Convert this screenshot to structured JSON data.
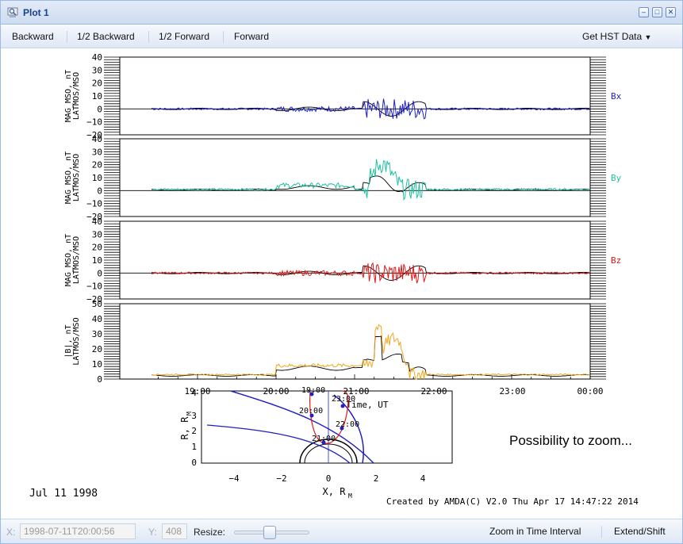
{
  "window": {
    "title": "Plot 1"
  },
  "toolbar": {
    "backward": "Backward",
    "half_backward": "1/2 Backward",
    "half_forward": "1/2 Forward",
    "forward": "Forward",
    "get_hst": "Get HST Data"
  },
  "plot": {
    "panels": [
      {
        "ylabel_line1": "MAG_MSO, nT",
        "ylabel_line2": "LATMOS/MSO",
        "component": "Bx",
        "color": "#2020c0",
        "yticks": [
          "40",
          "30",
          "20",
          "10",
          "0",
          "−10",
          "−20"
        ]
      },
      {
        "ylabel_line1": "MAG_MSO, nT",
        "ylabel_line2": "LATMOS/MSO",
        "component": "By",
        "color": "#20c0a0",
        "yticks": [
          "40",
          "30",
          "20",
          "10",
          "0",
          "−10",
          "−20"
        ]
      },
      {
        "ylabel_line1": "MAG_MSO, nT",
        "ylabel_line2": "LATMOS/MSO",
        "component": "Bz",
        "color": "#e01818",
        "yticks": [
          "40",
          "30",
          "20",
          "10",
          "0",
          "−10",
          "−20"
        ]
      },
      {
        "ylabel_line1": "|B|, nT",
        "ylabel_line2": "LATMOS/MSO",
        "component": "",
        "color": "#f0a820",
        "yticks": [
          "50",
          "40",
          "30",
          "20",
          "10",
          "0"
        ]
      }
    ],
    "time_ticks": [
      "19:00",
      "20:00",
      "21:00",
      "22:00",
      "23:00",
      "00:00"
    ],
    "time_axis_label": "Time, UT",
    "date": "Jul 11 1998",
    "credit": "Created by AMDA(C) V2.0 Thu Apr 17 14:47:22 2014",
    "annotation": "Possibility to zoom...",
    "orbit": {
      "ylabel": "R, R",
      "ylabel_sub": "M",
      "xlabel": "X, R",
      "xlabel_sub": "M",
      "xticks": [
        "−4",
        "−2",
        "0",
        "2",
        "4"
      ],
      "yticks": [
        "0",
        "1",
        "2",
        "3",
        "4"
      ],
      "times": [
        "19:00",
        "20:00",
        "21:00",
        "22:00",
        "23:00"
      ]
    }
  },
  "statusbar": {
    "x_label": "X:",
    "x_value": "1998-07-11T20:00:56",
    "y_label": "Y:",
    "y_value": "408",
    "resize_label": "Resize:",
    "zoom_button": "Zoom in Time Interval",
    "extend_button": "Extend/Shift"
  },
  "colors": {
    "title_bar": "#cddcf0",
    "title_text": "#15428b",
    "bx": "#2020c0",
    "by": "#20c0a0",
    "bz": "#e01818",
    "btot": "#f0a820"
  }
}
